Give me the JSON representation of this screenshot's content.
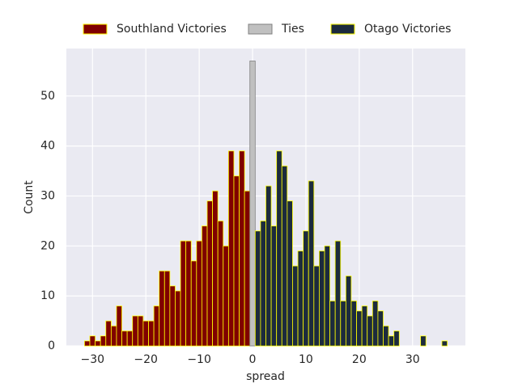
{
  "chart_data": {
    "type": "histogram",
    "xlabel": "spread",
    "ylabel": "Count",
    "xlim": [
      -34.9,
      39.9
    ],
    "ylim": [
      0,
      59.5
    ],
    "xticks": [
      {
        "value": -30,
        "label": "−30"
      },
      {
        "value": -20,
        "label": "−20"
      },
      {
        "value": -10,
        "label": "−10"
      },
      0,
      10,
      20,
      30
    ],
    "yticks": [
      0,
      10,
      20,
      30,
      40,
      50
    ],
    "grid": true,
    "legend": "upper center",
    "series": [
      {
        "name": "Southland Victories",
        "color": "#800000",
        "edgecolor": "#ffff00",
        "bins": [
          -31.5,
          -30.5,
          -29.5,
          -28.5,
          -27.5,
          -26.5,
          -25.5,
          -24.5,
          -23.5,
          -22.5,
          -21.5,
          -20.5,
          -19.5,
          -18.5,
          -17.5,
          -16.5,
          -15.5,
          -14.5,
          -13.5,
          -12.5,
          -11.5,
          -10.5,
          -9.5,
          -8.5,
          -7.5,
          -6.5,
          -5.5,
          -4.5,
          -3.5,
          -2.5,
          -1.5,
          -0.5
        ],
        "values": [
          1,
          2,
          1,
          2,
          5,
          4,
          8,
          3,
          3,
          6,
          6,
          5,
          5,
          8,
          15,
          15,
          12,
          11,
          21,
          21,
          17,
          21,
          24,
          29,
          31,
          25,
          20,
          39,
          34,
          39,
          31
        ]
      },
      {
        "name": "Ties",
        "color": "#c0c0c0",
        "edgecolor": "#808080",
        "bins": [
          -0.5,
          0.5
        ],
        "values": [
          57
        ]
      },
      {
        "name": "Otago Victories",
        "color": "#1c2b3d",
        "edgecolor": "#ffff00",
        "bins": [
          0.5,
          1.5,
          2.5,
          3.5,
          4.5,
          5.5,
          6.5,
          7.5,
          8.5,
          9.5,
          10.5,
          11.5,
          12.5,
          13.5,
          14.5,
          15.5,
          16.5,
          17.5,
          18.5,
          19.5,
          20.5,
          21.5,
          22.5,
          23.5,
          24.5,
          25.5,
          26.5,
          27.5,
          28.5,
          29.5,
          30.5,
          31.5,
          32.5,
          33.5,
          34.5,
          35.5,
          36.5
        ],
        "values": [
          23,
          25,
          32,
          24,
          39,
          36,
          29,
          16,
          19,
          23,
          33,
          16,
          19,
          20,
          9,
          21,
          9,
          14,
          9,
          7,
          8,
          6,
          9,
          7,
          4,
          2,
          3,
          0,
          0,
          0,
          0,
          2,
          0,
          0,
          0,
          1
        ]
      }
    ]
  }
}
